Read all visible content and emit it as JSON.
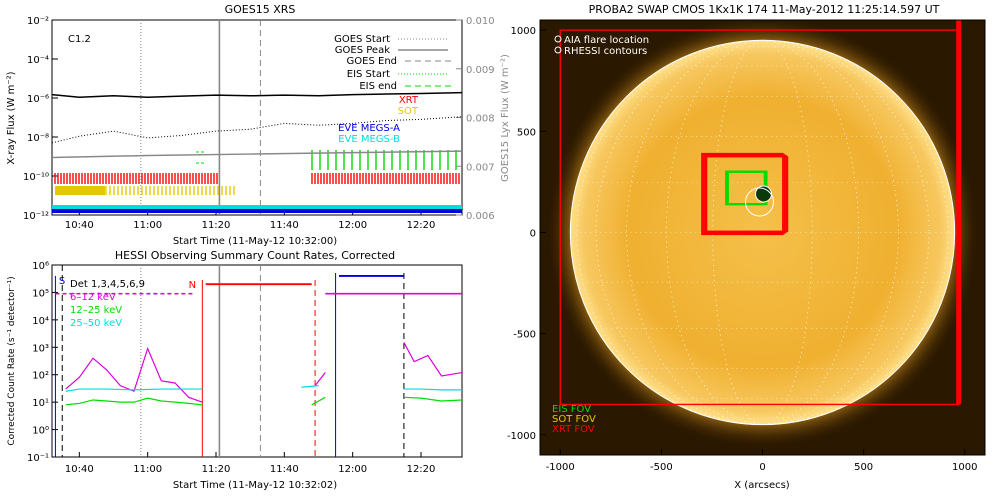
{
  "colors": {
    "red": "#ff0000",
    "green": "#00dd00",
    "yellow": "#e6c800",
    "blue": "#0000dd",
    "cyan": "#00dddd",
    "magenta": "#dd00dd",
    "gray": "#888888",
    "sun_core": "#f2c04a",
    "sun_edge": "#a86a00"
  },
  "chart_data": [
    {
      "type": "line",
      "title": "GOES15 XRS",
      "xlabel": "Start Time (11-May-12 10:32:00)",
      "ylabel": "X-ray Flux (W m⁻²)",
      "ylabel_right": "GOES15 Lyx Flux (W m⁻²)",
      "x_ticks": [
        "10:40",
        "11:00",
        "11:20",
        "11:40",
        "12:00",
        "12:20"
      ],
      "y_ticks": [
        "10⁻²",
        "10⁻⁴",
        "10⁻⁶",
        "10⁻⁸",
        "10⁻¹⁰",
        "10⁻¹²"
      ],
      "y2_ticks": [
        "0.010",
        "0.009",
        "0.008",
        "0.007",
        "0.006"
      ],
      "ylim": [
        1e-12,
        0.01
      ],
      "ylim_right": [
        0.006,
        0.01
      ],
      "y_scale": "log",
      "flare_class": "C1.2",
      "legend": [
        {
          "label": "GOES Start",
          "color": "#888888",
          "style": "dotted"
        },
        {
          "label": "GOES Peak",
          "color": "#888888",
          "style": "solid"
        },
        {
          "label": "GOES End",
          "color": "#888888",
          "style": "dashed"
        },
        {
          "label": "EIS Start",
          "color": "#00dd00",
          "style": "dotted"
        },
        {
          "label": "EIS end",
          "color": "#00dd00",
          "style": "dashed"
        },
        {
          "label": "XRT",
          "color": "#ff0000",
          "style": "text"
        },
        {
          "label": "SOT",
          "color": "#e6c800",
          "style": "text"
        },
        {
          "label": "EVE MEGS-A",
          "color": "#0000dd",
          "style": "text"
        },
        {
          "label": "EVE MEGS-B",
          "color": "#00dddd",
          "style": "text"
        }
      ],
      "x_range": [
        "10:32",
        "12:32"
      ],
      "markers": {
        "goes_start": "10:58",
        "goes_peak": "11:21",
        "goes_end": "11:33"
      },
      "series": [
        {
          "name": "",
          "color": "#000000",
          "t": [
            "10:32",
            "10:40",
            "10:50",
            "11:00",
            "11:10",
            "11:20",
            "11:30",
            "11:40",
            "11:50",
            "12:00",
            "12:10",
            "12:20",
            "12:32"
          ],
          "values": [
            1.5e-06,
            1.1e-06,
            1.3e-06,
            1.1e-06,
            1.25e-06,
            1.4e-06,
            1.3e-06,
            1.4e-06,
            1.3e-06,
            1.5e-06,
            1.6e-06,
            1.7e-06,
            1.9e-06
          ]
        },
        {
          "name": "",
          "color": "#000000",
          "style": "dotted",
          "t": [
            "10:32",
            "10:40",
            "10:50",
            "11:00",
            "11:10",
            "11:20",
            "11:30",
            "11:40",
            "11:50",
            "12:00",
            "12:10",
            "12:20",
            "12:32"
          ],
          "values": [
            5e-09,
            1.1e-08,
            2e-08,
            9e-09,
            1.2e-08,
            2e-08,
            2.5e-08,
            5e-08,
            4e-08,
            5e-08,
            7e-08,
            8e-08,
            1.1e-07
          ]
        },
        {
          "name": "",
          "color": "#888888",
          "axis": "right",
          "t": [
            "10:32",
            "11:00",
            "11:30",
            "12:00",
            "12:32"
          ],
          "values": [
            0.00718,
            0.00722,
            0.00725,
            0.00728,
            0.00731
          ]
        }
      ]
    },
    {
      "type": "line",
      "title": "HESSI Observing Summary Count Rates, Corrected",
      "xlabel": "Start Time (11-May-12 10:32:02)",
      "ylabel": "Corrected Count Rate (s⁻¹ detector⁻¹)",
      "x_ticks": [
        "10:40",
        "11:00",
        "11:20",
        "11:40",
        "12:00",
        "12:20"
      ],
      "y_ticks": [
        "10⁶",
        "10⁵",
        "10⁴",
        "10³",
        "10²",
        "10¹",
        "10⁰",
        "10⁻¹"
      ],
      "ylim": [
        0.1,
        1000000
      ],
      "y_scale": "log",
      "flags": [
        "S",
        "N"
      ],
      "legend": [
        {
          "label": "Det 1,3,4,5,6,9",
          "color": "#000000"
        },
        {
          "label": "6–12 keV",
          "color": "#dd00dd"
        },
        {
          "label": "12–25 keV",
          "color": "#00dd00"
        },
        {
          "label": "25–50 keV",
          "color": "#00dddd"
        }
      ],
      "series": [
        {
          "name": "6–12 keV",
          "color": "#dd00dd",
          "t": [
            "10:36",
            "10:40",
            "10:44",
            "10:48",
            "10:52",
            "10:56",
            "11:00",
            "11:04",
            "11:08",
            "11:12",
            "11:16",
            "11:49",
            "11:52",
            "12:15",
            "12:18",
            "12:22",
            "12:26",
            "12:32"
          ],
          "values": [
            30,
            80,
            400,
            150,
            40,
            25,
            900,
            60,
            50,
            15,
            10,
            40,
            120,
            1500,
            300,
            500,
            90,
            120
          ]
        },
        {
          "name": "12–25 keV",
          "color": "#00dd00",
          "t": [
            "10:36",
            "10:40",
            "10:44",
            "10:48",
            "10:52",
            "10:56",
            "11:00",
            "11:04",
            "11:08",
            "11:12",
            "11:16",
            "11:48",
            "11:52",
            "12:15",
            "12:20",
            "12:26",
            "12:32"
          ],
          "values": [
            8,
            9,
            12,
            11,
            10,
            10,
            14,
            11,
            10,
            9,
            8,
            8,
            15,
            15,
            14,
            11,
            12
          ]
        },
        {
          "name": "25–50 keV",
          "color": "#00dddd",
          "t": [
            "10:36",
            "10:40",
            "10:48",
            "10:56",
            "11:04",
            "11:12",
            "11:16",
            "11:45",
            "11:50",
            "12:15",
            "12:20",
            "12:26",
            "12:32"
          ],
          "values": [
            25,
            30,
            30,
            28,
            30,
            30,
            30,
            35,
            40,
            30,
            30,
            28,
            28
          ]
        },
        {
          "name": "Det 1,3,4,5,6,9",
          "color": "#ff0000",
          "t": [
            "11:17",
            "11:48"
          ],
          "values": [
            200000,
            200000
          ]
        },
        {
          "name": "",
          "color": "#0000dd",
          "t": [
            "11:56",
            "12:15"
          ],
          "values": [
            400000,
            400000
          ]
        }
      ]
    },
    {
      "type": "scatter",
      "title": "PROBA2 SWAP CMOS 1Kx1K 174 11-May-2012 11:25:14.597 UT",
      "xlabel": "X (arcsecs)",
      "ylabel": "",
      "x_ticks": [
        "-1000",
        "-500",
        "0",
        "500",
        "1000"
      ],
      "y_ticks": [
        "1000",
        "500",
        "0",
        "-500",
        "-1000"
      ],
      "xlim": [
        -1100,
        1100
      ],
      "ylim": [
        -1100,
        1050
      ],
      "solar_radius_arcsec": 950,
      "legend": [
        {
          "label": "AIA flare location",
          "color": "#ffffff"
        },
        {
          "label": "RHESSI contours",
          "color": "#ffffff"
        }
      ],
      "fov_labels": [
        {
          "label": "EIS FOV",
          "color": "#00dd00"
        },
        {
          "label": "SOT FOV",
          "color": "#e6c800"
        },
        {
          "label": "XRT FOV",
          "color": "#ff0000"
        }
      ],
      "fovs": {
        "xrt_large": {
          "x": [
            -1000,
            970
          ],
          "y": [
            -850,
            1000
          ]
        },
        "xrt_small": {
          "x": [
            -300,
            100
          ],
          "y": [
            -10,
            390
          ]
        },
        "eis": {
          "x": [
            -180,
            20
          ],
          "y": [
            140,
            300
          ]
        },
        "flare": {
          "x": 5,
          "y": 190
        }
      }
    }
  ]
}
